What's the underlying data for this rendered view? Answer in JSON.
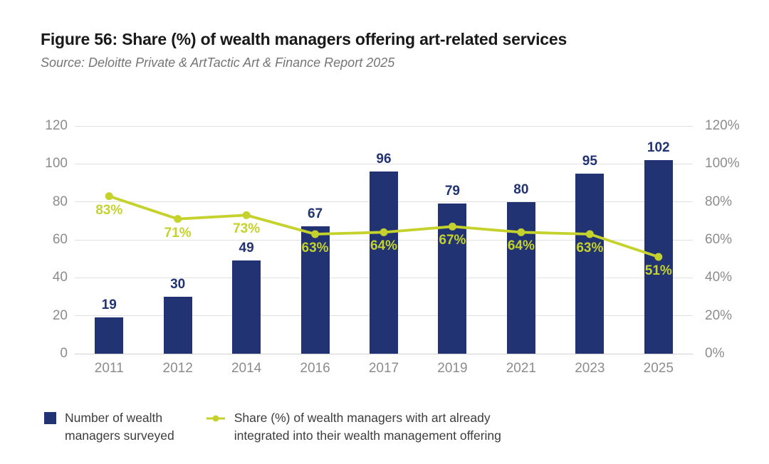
{
  "figure": {
    "title": "Figure 56: Share (%) of wealth managers offering art-related services",
    "source": "Source: Deloitte Private & ArtTactic Art & Finance Report 2025"
  },
  "colors": {
    "bar_navy": "#213372",
    "line_green": "#c6d22c",
    "axis_text": "#8c8c8c",
    "gridline": "#e0e0e0",
    "title_text": "#191919",
    "source_text": "#757575",
    "legend_text": "#3d3d3d"
  },
  "legend": {
    "bar": {
      "lines": [
        "Number of wealth",
        "managers surveyed"
      ]
    },
    "line": {
      "lines": [
        "Share (%) of wealth managers with art already",
        "integrated into their wealth management offering"
      ]
    }
  },
  "chart_data": {
    "type": "bar+line",
    "title": "Figure 56: Share (%) of wealth managers offering art-related services",
    "categories": [
      "2011",
      "2012",
      "2014",
      "2016",
      "2017",
      "2019",
      "2021",
      "2023",
      "2025"
    ],
    "series": [
      {
        "name": "Number of wealth managers surveyed",
        "chart": "bar",
        "axis": "left",
        "values": [
          19,
          30,
          49,
          67,
          96,
          79,
          80,
          95,
          102
        ]
      },
      {
        "name": "Share (%) of wealth managers with art already integrated into their wealth management offering",
        "chart": "line",
        "axis": "right",
        "values": [
          83,
          71,
          73,
          63,
          64,
          67,
          64,
          63,
          51
        ],
        "point_labels": [
          "83%",
          "71%",
          "73%",
          "63%",
          "64%",
          "67%",
          "64%",
          "63%",
          "51%"
        ]
      }
    ],
    "left_axis": {
      "min": 0,
      "max": 120,
      "tick_values": [
        0,
        20,
        40,
        60,
        80,
        100,
        120
      ],
      "tick_labels": [
        "0",
        "20",
        "40",
        "60",
        "80",
        "100",
        "120"
      ]
    },
    "right_axis": {
      "min": 0,
      "max": 120,
      "tick_values": [
        0,
        20,
        40,
        60,
        80,
        100,
        120
      ],
      "tick_labels": [
        "0%",
        "20%",
        "40%",
        "60%",
        "80%",
        "100%",
        "120%"
      ]
    },
    "grid": true,
    "legend_position": "bottom-left"
  }
}
